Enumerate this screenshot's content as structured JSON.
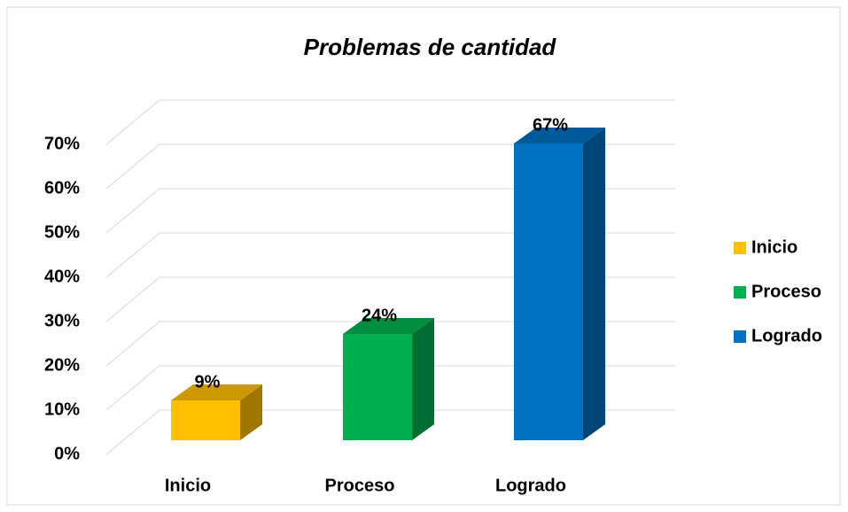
{
  "chart_data": {
    "type": "bar3d",
    "title": "Problemas de cantidad",
    "categories": [
      "Inicio",
      "Proceso",
      "Logrado"
    ],
    "values": [
      9,
      24,
      67
    ],
    "value_labels": [
      "9%",
      "24%",
      "67%"
    ],
    "colors": [
      "#ffc000",
      "#00b050",
      "#0070c0"
    ],
    "ylim": [
      0,
      70
    ],
    "yticks": [
      {
        "value": 0,
        "label": "0%"
      },
      {
        "value": 10,
        "label": "10%"
      },
      {
        "value": 20,
        "label": "20%"
      },
      {
        "value": 30,
        "label": "30%"
      },
      {
        "value": 40,
        "label": "40%"
      },
      {
        "value": 50,
        "label": "50%"
      },
      {
        "value": 60,
        "label": "60%"
      },
      {
        "value": 70,
        "label": "70%"
      }
    ],
    "grid": true,
    "legend": "right"
  }
}
